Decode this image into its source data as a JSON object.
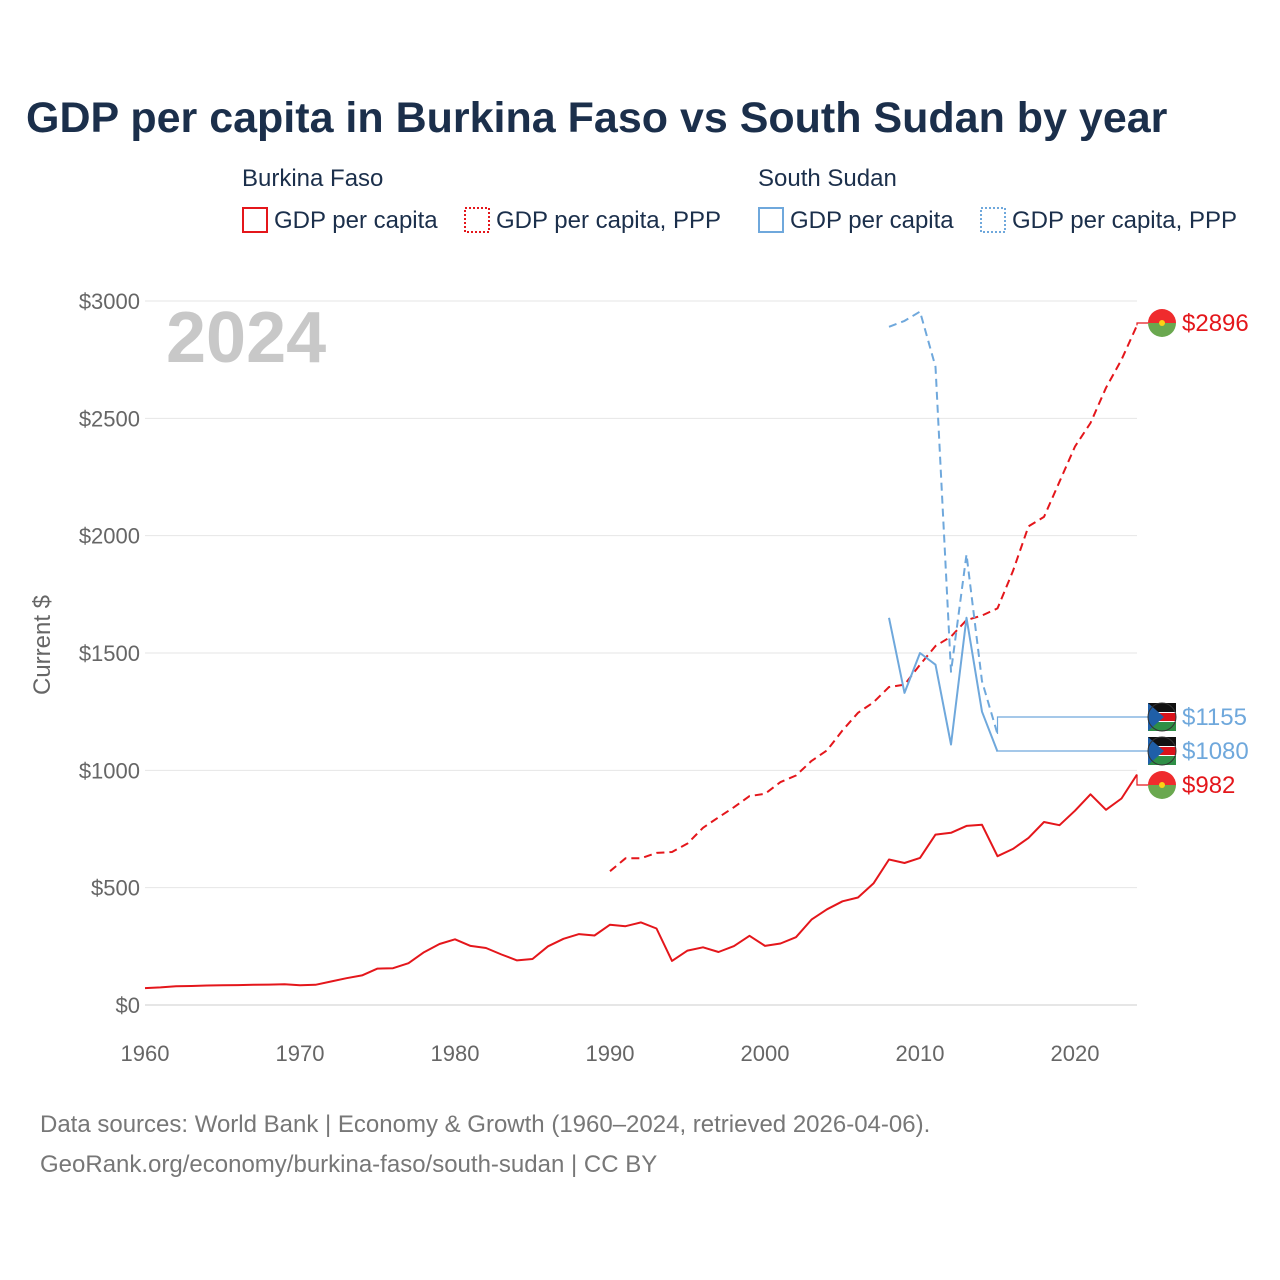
{
  "colors": {
    "burkina": "#e4161b",
    "sudan": "#6fa8dc",
    "title": "#1b2f4b",
    "axis_text": "#666666",
    "grid": "#e6e6e6",
    "year_watermark": "#c8c8c8",
    "source_text": "#777777"
  },
  "chart_data": {
    "type": "line",
    "title": "GDP per capita in Burkina Faso vs South Sudan by year",
    "ylabel": "Current $",
    "xlabel": "",
    "xlim": [
      1960,
      2024
    ],
    "ylim": [
      0,
      3000
    ],
    "x_ticks": [
      1960,
      1970,
      1980,
      1990,
      2000,
      2010,
      2020
    ],
    "x_tick_labels": [
      "1960",
      "1970",
      "1980",
      "1990",
      "2000",
      "2010",
      "2020"
    ],
    "y_ticks": [
      0,
      500,
      1000,
      1500,
      2000,
      2500,
      3000
    ],
    "y_tick_labels": [
      "$0",
      "$500",
      "$1000",
      "$1500",
      "$2000",
      "$2500",
      "$3000"
    ],
    "grid": true,
    "year_watermark": "2024",
    "legend": {
      "groups": [
        {
          "country": "Burkina Faso",
          "items": [
            "GDP per capita",
            "GDP per capita, PPP"
          ]
        },
        {
          "country": "South Sudan",
          "items": [
            "GDP per capita",
            "GDP per capita, PPP"
          ]
        }
      ]
    },
    "series": [
      {
        "name": "Burkina Faso GDP per capita",
        "country": "Burkina Faso",
        "style": "solid",
        "color_key": "burkina",
        "end_label": "$982",
        "points": [
          [
            1960,
            72
          ],
          [
            1961,
            75
          ],
          [
            1962,
            80
          ],
          [
            1963,
            81
          ],
          [
            1964,
            83
          ],
          [
            1965,
            84
          ],
          [
            1966,
            85
          ],
          [
            1967,
            86
          ],
          [
            1968,
            87
          ],
          [
            1969,
            88
          ],
          [
            1970,
            84
          ],
          [
            1971,
            86
          ],
          [
            1972,
            100
          ],
          [
            1973,
            114
          ],
          [
            1974,
            126
          ],
          [
            1975,
            155
          ],
          [
            1976,
            157
          ],
          [
            1977,
            178
          ],
          [
            1978,
            225
          ],
          [
            1979,
            260
          ],
          [
            1980,
            280
          ],
          [
            1981,
            252
          ],
          [
            1982,
            243
          ],
          [
            1983,
            215
          ],
          [
            1984,
            190
          ],
          [
            1985,
            196
          ],
          [
            1986,
            250
          ],
          [
            1987,
            282
          ],
          [
            1988,
            302
          ],
          [
            1989,
            296
          ],
          [
            1990,
            342
          ],
          [
            1991,
            336
          ],
          [
            1992,
            352
          ],
          [
            1993,
            326
          ],
          [
            1994,
            188
          ],
          [
            1995,
            232
          ],
          [
            1996,
            246
          ],
          [
            1997,
            226
          ],
          [
            1998,
            251
          ],
          [
            1999,
            295
          ],
          [
            2000,
            252
          ],
          [
            2001,
            262
          ],
          [
            2002,
            289
          ],
          [
            2003,
            364
          ],
          [
            2004,
            408
          ],
          [
            2005,
            442
          ],
          [
            2006,
            458
          ],
          [
            2007,
            518
          ],
          [
            2008,
            620
          ],
          [
            2009,
            605
          ],
          [
            2010,
            627
          ],
          [
            2011,
            726
          ],
          [
            2012,
            734
          ],
          [
            2013,
            763
          ],
          [
            2014,
            768
          ],
          [
            2015,
            634
          ],
          [
            2016,
            665
          ],
          [
            2017,
            712
          ],
          [
            2018,
            780
          ],
          [
            2019,
            766
          ],
          [
            2020,
            828
          ],
          [
            2021,
            898
          ],
          [
            2022,
            832
          ],
          [
            2023,
            880
          ],
          [
            2024,
            982
          ]
        ]
      },
      {
        "name": "Burkina Faso GDP per capita, PPP",
        "country": "Burkina Faso",
        "style": "dashed",
        "color_key": "burkina",
        "end_label": "$2896",
        "points": [
          [
            1990,
            570
          ],
          [
            1991,
            625
          ],
          [
            1992,
            625
          ],
          [
            1993,
            648
          ],
          [
            1994,
            652
          ],
          [
            1995,
            688
          ],
          [
            1996,
            755
          ],
          [
            1997,
            800
          ],
          [
            1998,
            843
          ],
          [
            1999,
            890
          ],
          [
            2000,
            900
          ],
          [
            2001,
            950
          ],
          [
            2002,
            978
          ],
          [
            2003,
            1040
          ],
          [
            2004,
            1085
          ],
          [
            2005,
            1170
          ],
          [
            2006,
            1245
          ],
          [
            2007,
            1290
          ],
          [
            2008,
            1355
          ],
          [
            2009,
            1365
          ],
          [
            2010,
            1450
          ],
          [
            2011,
            1530
          ],
          [
            2012,
            1570
          ],
          [
            2013,
            1640
          ],
          [
            2014,
            1660
          ],
          [
            2015,
            1690
          ],
          [
            2016,
            1850
          ],
          [
            2017,
            2040
          ],
          [
            2018,
            2080
          ],
          [
            2019,
            2230
          ],
          [
            2020,
            2380
          ],
          [
            2021,
            2480
          ],
          [
            2022,
            2630
          ],
          [
            2023,
            2750
          ],
          [
            2024,
            2896
          ]
        ]
      },
      {
        "name": "South Sudan GDP per capita",
        "country": "South Sudan",
        "style": "solid",
        "color_key": "sudan",
        "end_label": "$1080",
        "points": [
          [
            2008,
            1650
          ],
          [
            2009,
            1330
          ],
          [
            2010,
            1500
          ],
          [
            2011,
            1450
          ],
          [
            2012,
            1110
          ],
          [
            2013,
            1650
          ],
          [
            2014,
            1250
          ],
          [
            2015,
            1080
          ]
        ]
      },
      {
        "name": "South Sudan GDP per capita, PPP",
        "country": "South Sudan",
        "style": "dashed",
        "color_key": "sudan",
        "end_label": "$1155",
        "points": [
          [
            2008,
            2890
          ],
          [
            2009,
            2915
          ],
          [
            2010,
            2955
          ],
          [
            2011,
            2720
          ],
          [
            2012,
            1420
          ],
          [
            2013,
            1920
          ],
          [
            2014,
            1380
          ],
          [
            2015,
            1155
          ]
        ]
      }
    ]
  },
  "footer": {
    "line1": "Data sources: World Bank | Economy & Growth (1960–2024, retrieved 2026-04-06).",
    "line2": "GeoRank.org/economy/burkina-faso/south-sudan | CC BY"
  }
}
